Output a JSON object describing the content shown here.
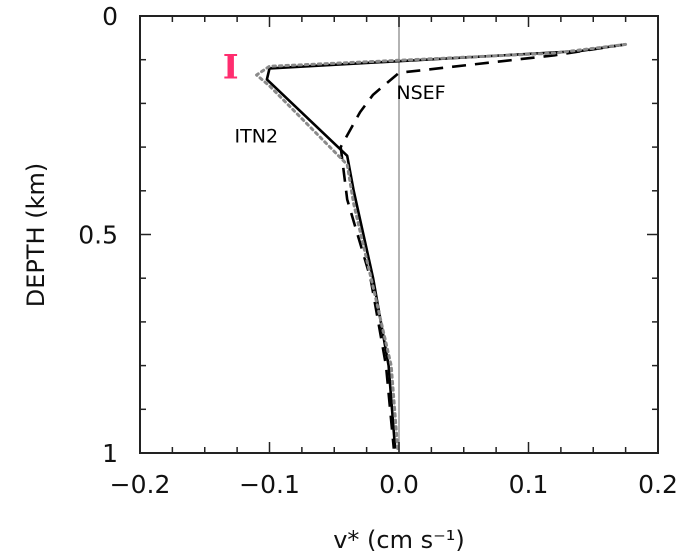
{
  "chart_data": {
    "type": "line",
    "xlabel": "v* (cm s⁻¹)",
    "ylabel": "DEPTH (km)",
    "xlim": [
      -0.2,
      0.2
    ],
    "ylim": [
      0,
      1
    ],
    "y_inverted": true,
    "grid": false,
    "xticks": [
      -0.2,
      -0.1,
      0.0,
      0.1,
      0.2
    ],
    "xtick_labels": [
      "−0.2",
      "−0.1",
      "0.0",
      "0.1",
      "0.2"
    ],
    "yticks": [
      0,
      0.5,
      1
    ],
    "ytick_labels": [
      "0",
      "0.5",
      "1"
    ],
    "zero_line_x": 0.0,
    "series": [
      {
        "name": "ITN2",
        "style": "solid",
        "color": "#000000",
        "x": [
          0.175,
          0.14,
          -0.1,
          -0.102,
          -0.04,
          -0.035,
          -0.02,
          -0.008,
          -0.003
        ],
        "y": [
          0.065,
          0.08,
          0.12,
          0.145,
          0.32,
          0.4,
          0.6,
          0.8,
          0.99
        ]
      },
      {
        "name": "NSEF",
        "style": "dashed",
        "color": "#000000",
        "x": [
          0.175,
          0.12,
          0.0,
          -0.02,
          -0.03,
          -0.045,
          -0.04,
          -0.022,
          -0.01,
          -0.004
        ],
        "y": [
          0.065,
          0.09,
          0.13,
          0.18,
          0.22,
          0.3,
          0.42,
          0.6,
          0.8,
          0.99
        ]
      },
      {
        "name": "",
        "style": "dotted",
        "color": "#8a8a8a",
        "x": [
          0.175,
          0.12,
          -0.1,
          -0.11,
          -0.1,
          -0.04,
          -0.035,
          -0.02,
          -0.006,
          -0.001
        ],
        "y": [
          0.065,
          0.085,
          0.115,
          0.135,
          0.16,
          0.34,
          0.43,
          0.62,
          0.8,
          0.99
        ]
      }
    ],
    "annotations": [
      {
        "text": "NSEF",
        "x": -0.002,
        "y": 0.19
      },
      {
        "text": "ITN2",
        "x": -0.127,
        "y": 0.29
      }
    ],
    "marker": {
      "text": "I",
      "color": "#ff2d6f",
      "x": -0.13,
      "y": 0.115
    }
  }
}
